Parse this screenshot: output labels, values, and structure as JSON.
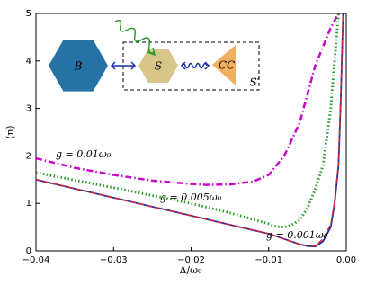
{
  "chart_data": {
    "type": "line",
    "xlabel": "Δ/ω₀",
    "ylabel": "⟨n⟩",
    "xlim": [
      -0.04,
      0.0
    ],
    "ylim": [
      0,
      5
    ],
    "xticks": [
      {
        "value": -0.04,
        "label": "−0.04"
      },
      {
        "value": -0.03,
        "label": "−0.03"
      },
      {
        "value": -0.02,
        "label": "−0.02"
      },
      {
        "value": -0.01,
        "label": "−0.01"
      },
      {
        "value": 0,
        "label": "0.00"
      }
    ],
    "yticks": [
      0,
      1,
      2,
      3,
      4,
      5
    ],
    "series": [
      {
        "color": "#cc00cc",
        "style": "dashdot",
        "x": [
          -0.04,
          -0.035,
          -0.03,
          -0.025,
          -0.02,
          -0.018,
          -0.015,
          -0.012,
          -0.01,
          -0.008,
          -0.006,
          -0.004,
          -0.002,
          -0.001
        ],
        "values": [
          1.95,
          1.75,
          1.6,
          1.48,
          1.41,
          1.39,
          1.4,
          1.46,
          1.6,
          2.0,
          2.7,
          3.9,
          4.7,
          5
        ]
      },
      {
        "color": "#2a9a2a",
        "style": "dotted",
        "x": [
          -0.04,
          -0.03,
          -0.02,
          -0.015,
          -0.01,
          -0.009,
          -0.008,
          -0.007,
          -0.006,
          -0.005,
          -0.004,
          -0.003,
          -0.002,
          -0.001
        ],
        "values": [
          1.65,
          1.33,
          1.0,
          0.8,
          0.57,
          0.51,
          0.5,
          0.55,
          0.65,
          0.9,
          1.3,
          1.8,
          3.0,
          5
        ]
      },
      {
        "color": "#1a2fa8",
        "style": "solid",
        "x": [
          -0.04,
          -0.035,
          -0.03,
          -0.025,
          -0.02,
          -0.015,
          -0.01,
          -0.008,
          -0.006,
          -0.005,
          -0.004,
          -0.003,
          -0.002,
          -0.0015,
          -0.001,
          -0.0007,
          -0.0004
        ],
        "values": [
          1.5,
          1.31,
          1.12,
          0.93,
          0.74,
          0.55,
          0.36,
          0.25,
          0.14,
          0.1,
          0.09,
          0.2,
          0.5,
          1.0,
          1.8,
          3.2,
          5
        ]
      },
      {
        "color": "#e0202c",
        "style": "dashed",
        "x": [
          -0.04,
          -0.035,
          -0.03,
          -0.025,
          -0.02,
          -0.015,
          -0.01,
          -0.008,
          -0.006,
          -0.005,
          -0.004,
          -0.003,
          -0.002,
          -0.0015,
          -0.001,
          -0.0007,
          -0.0004
        ],
        "values": [
          1.5,
          1.31,
          1.12,
          0.93,
          0.74,
          0.55,
          0.36,
          0.25,
          0.14,
          0.11,
          0.1,
          0.25,
          0.55,
          1.05,
          1.85,
          3.3,
          5
        ]
      }
    ],
    "annotations": [
      "g = 0.01ω₀",
      "g = 0.005ω₀",
      "g = 0.001ω₀"
    ],
    "inset": {
      "labels": [
        "B",
        "S",
        "CC",
        "S′"
      ]
    }
  }
}
